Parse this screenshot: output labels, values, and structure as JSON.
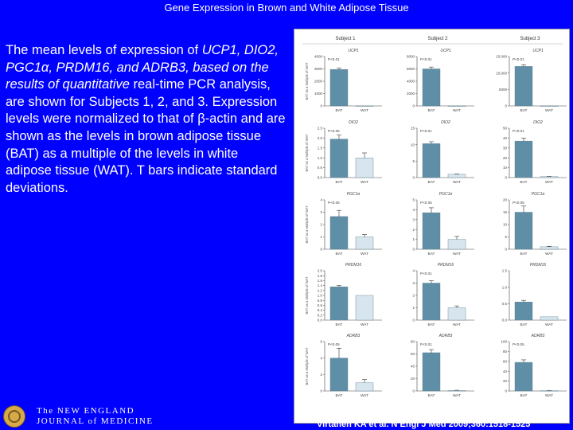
{
  "slide": {
    "title": "Gene Expression in Brown and White Adipose Tissue",
    "caption_parts": [
      {
        "text": "The mean levels of expression of ",
        "italic": false
      },
      {
        "text": "UCP1, DIO2, PGC1α, PRDM16, and ADRB3, based on the results of quantitative",
        "italic": true
      },
      {
        "text": " real-time PCR analysis, are shown for Subjects 1, 2, and 3. Expression levels were normalized to that of β-actin and are shown as the levels in brown adipose tissue (BAT) as a multiple of the levels in white adipose tissue (WAT). T bars indicate standard deviations.",
        "italic": false
      }
    ],
    "citation": "Virtanen KA et al. N Engl J Med 2009;360:1518-1525",
    "logo_line1": "The NEW ENGLAND",
    "logo_line2": "JOURNAL of MEDICINE"
  },
  "colors": {
    "background": "#0000ff",
    "bat_bar": "#5e8fa6",
    "wat_bar": "#d7e6ee",
    "text": "#ffffff"
  },
  "chart_data": {
    "type": "bar",
    "subjects": [
      "Subject 1",
      "Subject 2",
      "Subject 3"
    ],
    "categories": [
      "BAT",
      "WAT"
    ],
    "ylabel": "BAT as a Multiple of WAT",
    "rows": [
      {
        "gene": "UCP1",
        "panels": [
          {
            "subject": "Subject 1",
            "ylim": [
              0,
              4000
            ],
            "yticks": [
              "0",
              "1000",
              "2000",
              "3000",
              "4000"
            ],
            "bat": 2950,
            "bat_err": 110,
            "wat": 1,
            "wat_err": 0,
            "p": "P<0.01"
          },
          {
            "subject": "Subject 2",
            "ylim": [
              0,
              8000
            ],
            "yticks": [
              "0",
              "2000",
              "4000",
              "6000",
              "8000"
            ],
            "bat": 6000,
            "bat_err": 300,
            "wat": 1,
            "wat_err": 0,
            "p": "P<0.01"
          },
          {
            "subject": "Subject 3",
            "ylim": [
              0,
              15000
            ],
            "yticks": [
              "0",
              "5000",
              "10,000",
              "15,000"
            ],
            "bat": 12000,
            "bat_err": 500,
            "wat": 1,
            "wat_err": 0,
            "p": "P<0.01"
          }
        ]
      },
      {
        "gene": "DIO2",
        "panels": [
          {
            "subject": "Subject 1",
            "ylim": [
              0,
              2.5
            ],
            "yticks": [
              "0.0",
              "0.5",
              "1.0",
              "1.5",
              "2.0",
              "2.5"
            ],
            "bat": 1.95,
            "bat_err": 0.2,
            "wat": 1.0,
            "wat_err": 0.25,
            "p": "P<0.05"
          },
          {
            "subject": "Subject 2",
            "ylim": [
              0,
              15
            ],
            "yticks": [
              "0",
              "5",
              "10",
              "15"
            ],
            "bat": 10.3,
            "bat_err": 0.6,
            "wat": 1,
            "wat_err": 0.1,
            "p": "P<0.01"
          },
          {
            "subject": "Subject 3",
            "ylim": [
              0,
              50
            ],
            "yticks": [
              "0",
              "10",
              "20",
              "30",
              "40",
              "50"
            ],
            "bat": 37,
            "bat_err": 3,
            "wat": 1,
            "wat_err": 0.2,
            "p": "P<0.01"
          }
        ]
      },
      {
        "gene": "PGC1α",
        "panels": [
          {
            "subject": "Subject 1",
            "ylim": [
              0,
              4
            ],
            "yticks": [
              "0",
              "1",
              "2",
              "3",
              "4"
            ],
            "bat": 2.65,
            "bat_err": 0.5,
            "wat": 1.0,
            "wat_err": 0.2,
            "p": "P<0.05"
          },
          {
            "subject": "Subject 2",
            "ylim": [
              0,
              5
            ],
            "yticks": [
              "0",
              "1",
              "2",
              "3",
              "4",
              "5"
            ],
            "bat": 3.7,
            "bat_err": 0.5,
            "wat": 1.0,
            "wat_err": 0.3,
            "p": "P<0.05"
          },
          {
            "subject": "Subject 3",
            "ylim": [
              0,
              20
            ],
            "yticks": [
              "0",
              "5",
              "10",
              "15",
              "20"
            ],
            "bat": 15,
            "bat_err": 2.5,
            "wat": 1,
            "wat_err": 0.2,
            "p": "P<0.05"
          }
        ]
      },
      {
        "gene": "PRDM16",
        "panels": [
          {
            "subject": "Subject 1",
            "ylim": [
              0,
              2.0
            ],
            "yticks": [
              "0.0",
              "0.2",
              "0.4",
              "0.6",
              "0.8",
              "1.0",
              "1.2",
              "1.4",
              "1.6",
              "1.8",
              "2.0"
            ],
            "bat": 1.35,
            "bat_err": 0.05,
            "wat": 1.0,
            "wat_err": 0.0,
            "p": ""
          },
          {
            "subject": "Subject 2",
            "ylim": [
              0,
              4
            ],
            "yticks": [
              "0",
              "1",
              "2",
              "3",
              "4"
            ],
            "bat": 3.0,
            "bat_err": 0.2,
            "wat": 1.0,
            "wat_err": 0.15,
            "p": "P<0.01"
          },
          {
            "subject": "Subject 3",
            "ylim": [
              0,
              1.5
            ],
            "yticks": [
              "0.0",
              "0.5",
              "1.0",
              "1.5"
            ],
            "bat": 0.55,
            "bat_err": 0.05,
            "wat": 0.1,
            "wat_err": 0.0,
            "p": ""
          }
        ]
      },
      {
        "gene": "ADRB3",
        "panels": [
          {
            "subject": "Subject 1",
            "ylim": [
              0,
              6
            ],
            "yticks": [
              "0",
              "2",
              "4",
              "6"
            ],
            "bat": 4.0,
            "bat_err": 1.2,
            "wat": 1.0,
            "wat_err": 0.4,
            "p": "P<0.05"
          },
          {
            "subject": "Subject 2",
            "ylim": [
              0,
              80
            ],
            "yticks": [
              "0",
              "20",
              "40",
              "60",
              "80"
            ],
            "bat": 62,
            "bat_err": 5,
            "wat": 1,
            "wat_err": 0.2,
            "p": "P<0.01"
          },
          {
            "subject": "Subject 3",
            "ylim": [
              0,
              100
            ],
            "yticks": [
              "0",
              "20",
              "40",
              "60",
              "80",
              "100"
            ],
            "bat": 58,
            "bat_err": 5,
            "wat": 1,
            "wat_err": 0.2,
            "p": "P<0.05"
          }
        ]
      }
    ]
  }
}
